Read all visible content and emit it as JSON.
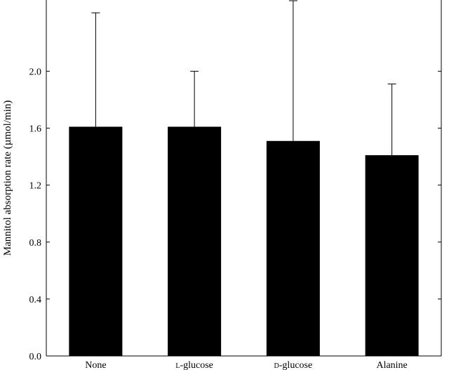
{
  "chart_data": {
    "type": "bar",
    "title": "",
    "xlabel": "",
    "ylabel": "Mannitol absorption rate (µmol/min)",
    "categories": [
      {
        "prefix": "",
        "prefix_style": "",
        "rest": "None"
      },
      {
        "prefix": "l",
        "prefix_style": "small-caps",
        "rest": "-glucose"
      },
      {
        "prefix": "d",
        "prefix_style": "small-caps",
        "rest": "-glucose"
      },
      {
        "prefix": "",
        "prefix_style": "",
        "rest": "Alanine"
      }
    ],
    "values": [
      1.61,
      1.61,
      1.51,
      1.41
    ],
    "error_upper": [
      2.41,
      2.0,
      2.51,
      1.91
    ],
    "ylim": [
      0,
      2.5
    ],
    "yticks": [
      "0.0",
      "0.4",
      "0.8",
      "1.2",
      "1.6",
      "2.0"
    ],
    "bar_color": "#000000",
    "grid": false,
    "legend": "none"
  }
}
